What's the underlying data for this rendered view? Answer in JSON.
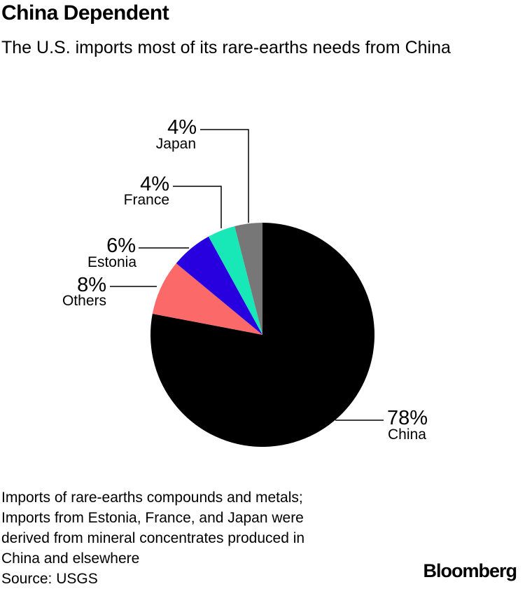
{
  "title": "China Dependent",
  "subtitle": "The U.S. imports most of its rare-earths needs from China",
  "chart_data": {
    "type": "pie",
    "slices": [
      {
        "label": "China",
        "value": 78,
        "value_label": "78%",
        "color": "#000000"
      },
      {
        "label": "Others",
        "value": 8,
        "value_label": "8%",
        "color": "#fb6a68"
      },
      {
        "label": "Estonia",
        "value": 6,
        "value_label": "6%",
        "color": "#2800e0"
      },
      {
        "label": "France",
        "value": 4,
        "value_label": "4%",
        "color": "#18e8b8"
      },
      {
        "label": "Japan",
        "value": 4,
        "value_label": "4%",
        "color": "#777777"
      }
    ],
    "start": "12 o'clock",
    "direction": "clockwise"
  },
  "notes": [
    "Imports of rare-earths compounds and metals;",
    "Imports from Estonia, France, and Japan were",
    "derived from mineral concentrates produced in",
    "China and elsewhere",
    "Source: USGS"
  ],
  "brand": "Bloomberg"
}
